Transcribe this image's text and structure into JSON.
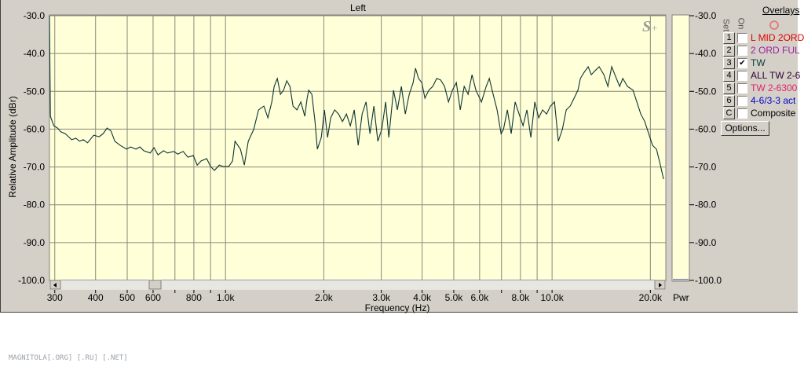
{
  "window": {
    "title": "Left"
  },
  "footer": {
    "text": "MAGNITOLA[.ORG] [.RU] [.NET]"
  },
  "meter": {
    "label": "Pwr",
    "level_db": -100.0
  },
  "watermark": {
    "logo": "S+",
    "brand": "MAGNITOLA"
  },
  "overlays": {
    "title": "Overlays",
    "col_set": "Set",
    "col_on": "On",
    "options_label": "Options...",
    "items": [
      {
        "set": "1",
        "on": false,
        "label": "L MID 2ORD",
        "color": "#e00000"
      },
      {
        "set": "2",
        "on": false,
        "label": "2 ORD FUL",
        "color": "#a020a0"
      },
      {
        "set": "3",
        "on": true,
        "label": "TW",
        "color": "#0a3a3a"
      },
      {
        "set": "4",
        "on": false,
        "label": "ALL TW 2-6",
        "color": "#300030"
      },
      {
        "set": "5",
        "on": false,
        "label": "TW 2-6300",
        "color": "#e0206a"
      },
      {
        "set": "6",
        "on": false,
        "label": "4-6/3-3 act",
        "color": "#0000d0"
      },
      {
        "set": "C",
        "on": false,
        "label": "Composite",
        "color": "#000000"
      }
    ]
  },
  "colors": {
    "plot_bg": "#ffffd8",
    "grid": "#8a8a78",
    "trace": "#0c3434",
    "window": "#d4d0c8"
  },
  "chart_data": {
    "type": "line",
    "title": "Left",
    "xlabel": "Frequency (Hz)",
    "ylabel": "Relative Amplitude (dBr)",
    "x_scale": "log",
    "xlim": [
      289,
      22300
    ],
    "ylim": [
      -100,
      -30
    ],
    "grid": true,
    "x_ticks": [
      {
        "value": 300,
        "label": "300"
      },
      {
        "value": 400,
        "label": "400"
      },
      {
        "value": 500,
        "label": "500"
      },
      {
        "value": 600,
        "label": "600"
      },
      {
        "value": 700,
        "label": ""
      },
      {
        "value": 800,
        "label": "800"
      },
      {
        "value": 900,
        "label": ""
      },
      {
        "value": 1000,
        "label": "1.0k"
      },
      {
        "value": 2000,
        "label": "2.0k"
      },
      {
        "value": 3000,
        "label": "3.0k"
      },
      {
        "value": 4000,
        "label": "4.0k"
      },
      {
        "value": 5000,
        "label": "5.0k"
      },
      {
        "value": 6000,
        "label": "6.0k"
      },
      {
        "value": 7000,
        "label": ""
      },
      {
        "value": 8000,
        "label": "8.0k"
      },
      {
        "value": 9000,
        "label": ""
      },
      {
        "value": 10000,
        "label": "10.0k"
      },
      {
        "value": 20000,
        "label": "20.0k"
      }
    ],
    "y_ticks": [
      {
        "value": -30,
        "label": "-30.0"
      },
      {
        "value": -40,
        "label": "-40.0"
      },
      {
        "value": -50,
        "label": "-50.0"
      },
      {
        "value": -60,
        "label": "-60.0"
      },
      {
        "value": -70,
        "label": "-70.0"
      },
      {
        "value": -80,
        "label": "-80.0"
      },
      {
        "value": -90,
        "label": "-90.0"
      },
      {
        "value": -100,
        "label": "-100.0"
      }
    ],
    "series": [
      {
        "points": [
          [
            289,
            -30.0
          ],
          [
            291,
            -56.6
          ],
          [
            298,
            -59.1
          ],
          [
            306,
            -59.7
          ],
          [
            313,
            -60.7
          ],
          [
            323,
            -61.2
          ],
          [
            338,
            -62.8
          ],
          [
            348,
            -62.4
          ],
          [
            357,
            -63.2
          ],
          [
            367,
            -62.8
          ],
          [
            378,
            -63.6
          ],
          [
            395,
            -61.6
          ],
          [
            410,
            -62.0
          ],
          [
            422,
            -61.2
          ],
          [
            434,
            -59.7
          ],
          [
            446,
            -60.5
          ],
          [
            458,
            -63.2
          ],
          [
            476,
            -64.3
          ],
          [
            498,
            -65.3
          ],
          [
            512,
            -64.7
          ],
          [
            532,
            -65.3
          ],
          [
            547,
            -64.7
          ],
          [
            562,
            -65.7
          ],
          [
            588,
            -66.3
          ],
          [
            604,
            -64.9
          ],
          [
            621,
            -66.8
          ],
          [
            646,
            -65.7
          ],
          [
            664,
            -66.3
          ],
          [
            694,
            -65.9
          ],
          [
            714,
            -66.6
          ],
          [
            742,
            -65.9
          ],
          [
            767,
            -67.4
          ],
          [
            797,
            -67.0
          ],
          [
            819,
            -69.5
          ],
          [
            842,
            -68.4
          ],
          [
            876,
            -67.8
          ],
          [
            900,
            -69.9
          ],
          [
            925,
            -70.9
          ],
          [
            957,
            -69.5
          ],
          [
            984,
            -69.9
          ],
          [
            1022,
            -69.9
          ],
          [
            1051,
            -68.4
          ],
          [
            1069,
            -63.2
          ],
          [
            1111,
            -65.3
          ],
          [
            1142,
            -69.5
          ],
          [
            1174,
            -63.2
          ],
          [
            1220,
            -60.1
          ],
          [
            1262,
            -54.9
          ],
          [
            1311,
            -53.9
          ],
          [
            1348,
            -57.0
          ],
          [
            1386,
            -52.8
          ],
          [
            1409,
            -48.7
          ],
          [
            1441,
            -46.6
          ],
          [
            1473,
            -50.8
          ],
          [
            1506,
            -49.7
          ],
          [
            1540,
            -47.2
          ],
          [
            1575,
            -48.7
          ],
          [
            1610,
            -53.9
          ],
          [
            1655,
            -54.9
          ],
          [
            1701,
            -52.8
          ],
          [
            1749,
            -56.6
          ],
          [
            1778,
            -51.8
          ],
          [
            1798,
            -49.7
          ],
          [
            1838,
            -50.8
          ],
          [
            1879,
            -58.0
          ],
          [
            1911,
            -65.3
          ],
          [
            1965,
            -62.2
          ],
          [
            2009,
            -54.9
          ],
          [
            2054,
            -62.2
          ],
          [
            2100,
            -57.0
          ],
          [
            2159,
            -54.9
          ],
          [
            2219,
            -56.0
          ],
          [
            2282,
            -58.0
          ],
          [
            2346,
            -56.0
          ],
          [
            2411,
            -59.1
          ],
          [
            2479,
            -54.9
          ],
          [
            2548,
            -64.3
          ],
          [
            2620,
            -56.0
          ],
          [
            2694,
            -52.8
          ],
          [
            2769,
            -61.2
          ],
          [
            2847,
            -53.9
          ],
          [
            2927,
            -63.2
          ],
          [
            3009,
            -60.1
          ],
          [
            3093,
            -52.8
          ],
          [
            3162,
            -62.2
          ],
          [
            3269,
            -49.7
          ],
          [
            3360,
            -54.9
          ],
          [
            3455,
            -48.7
          ],
          [
            3552,
            -56.0
          ],
          [
            3652,
            -50.8
          ],
          [
            3754,
            -47.7
          ],
          [
            3817,
            -43.9
          ],
          [
            3902,
            -46.6
          ],
          [
            3990,
            -47.7
          ],
          [
            4079,
            -51.8
          ],
          [
            4194,
            -49.7
          ],
          [
            4311,
            -48.7
          ],
          [
            4433,
            -46.6
          ],
          [
            4557,
            -47.0
          ],
          [
            4685,
            -48.7
          ],
          [
            4816,
            -52.8
          ],
          [
            4951,
            -49.7
          ],
          [
            5090,
            -47.7
          ],
          [
            5233,
            -54.9
          ],
          [
            5380,
            -48.7
          ],
          [
            5531,
            -50.8
          ],
          [
            5686,
            -45.6
          ],
          [
            5845,
            -49.7
          ],
          [
            6077,
            -52.8
          ],
          [
            6282,
            -48.7
          ],
          [
            6423,
            -46.6
          ],
          [
            6602,
            -50.8
          ],
          [
            6787,
            -54.9
          ],
          [
            6979,
            -61.2
          ],
          [
            7096,
            -60.1
          ],
          [
            7295,
            -54.9
          ],
          [
            7499,
            -61.2
          ],
          [
            7709,
            -52.8
          ],
          [
            7925,
            -56.0
          ],
          [
            8149,
            -59.1
          ],
          [
            8377,
            -54.9
          ],
          [
            8612,
            -62.2
          ],
          [
            8854,
            -52.8
          ],
          [
            9102,
            -57.0
          ],
          [
            9358,
            -54.9
          ],
          [
            9620,
            -56.0
          ],
          [
            9890,
            -53.9
          ],
          [
            10170,
            -52.8
          ],
          [
            10450,
            -63.2
          ],
          [
            10750,
            -60.1
          ],
          [
            11050,
            -54.9
          ],
          [
            11360,
            -53.9
          ],
          [
            11680,
            -51.8
          ],
          [
            12000,
            -49.7
          ],
          [
            12210,
            -46.6
          ],
          [
            12480,
            -45.2
          ],
          [
            12900,
            -43.5
          ],
          [
            13190,
            -45.6
          ],
          [
            13560,
            -44.5
          ],
          [
            13940,
            -43.5
          ],
          [
            14410,
            -45.6
          ],
          [
            14820,
            -48.7
          ],
          [
            15230,
            -43.5
          ],
          [
            15570,
            -45.6
          ],
          [
            16100,
            -48.7
          ],
          [
            16460,
            -46.6
          ],
          [
            17010,
            -48.7
          ],
          [
            17690,
            -49.7
          ],
          [
            18180,
            -52.8
          ],
          [
            18690,
            -56.0
          ],
          [
            19220,
            -58.0
          ],
          [
            19760,
            -61.2
          ],
          [
            20310,
            -64.3
          ],
          [
            20880,
            -65.3
          ],
          [
            21470,
            -69.5
          ],
          [
            21940,
            -73.2
          ]
        ]
      }
    ]
  }
}
